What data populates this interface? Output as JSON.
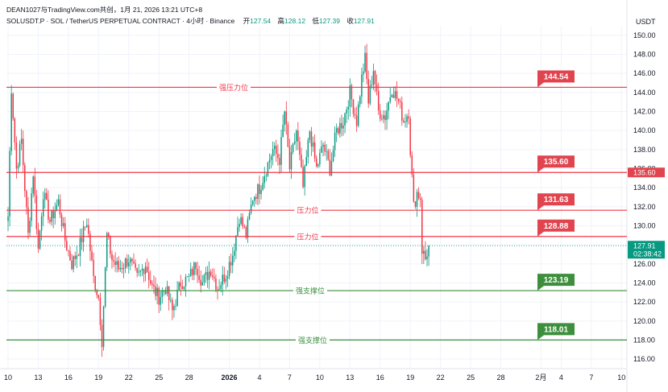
{
  "header": {
    "published": "DEAN1027与TradingView.com共创，1月 21, 2026 13:21 UTC+8",
    "symbol_line": "SOLUSDT.P · SOL / TetherUS PERPETUAL CONTRACT · 4小时 · Binance",
    "ohlc": [
      {
        "label": "开",
        "value": "127.54"
      },
      {
        "label": "高",
        "value": "128.12"
      },
      {
        "label": "低",
        "value": "127.39"
      },
      {
        "label": "收",
        "value": "127.91"
      }
    ],
    "currency": "USDT"
  },
  "colors": {
    "up": "#089981",
    "down": "#f23645",
    "resistance": "#f23645",
    "support": "#388e3c",
    "label_red": "#e0454f",
    "label_green": "#3d8f3d",
    "axis_text": "#131722",
    "grid": "#f0f3fa"
  },
  "chart_data": {
    "type": "candlestick",
    "y_axis": {
      "min": 115,
      "max": 151,
      "ticks": [
        "116.00",
        "118.00",
        "120.00",
        "122.00",
        "124.00",
        "126.00",
        "128.00",
        "130.00",
        "132.00",
        "134.00",
        "136.00",
        "138.00",
        "140.00",
        "142.00",
        "144.00",
        "146.00",
        "148.00",
        "150.00"
      ]
    },
    "x_axis": {
      "ticks": [
        {
          "label": "10",
          "bar": 0
        },
        {
          "label": "13",
          "bar": 18
        },
        {
          "label": "16",
          "bar": 36
        },
        {
          "label": "19",
          "bar": 54
        },
        {
          "label": "22",
          "bar": 72
        },
        {
          "label": "25",
          "bar": 90
        },
        {
          "label": "28",
          "bar": 108
        },
        {
          "label": "2026",
          "bar": 132,
          "bold": true
        },
        {
          "label": "4",
          "bar": 150
        },
        {
          "label": "7",
          "bar": 168
        },
        {
          "label": "10",
          "bar": 186
        },
        {
          "label": "13",
          "bar": 204
        },
        {
          "label": "16",
          "bar": 222
        },
        {
          "label": "19",
          "bar": 240
        },
        {
          "label": "22",
          "bar": 258
        },
        {
          "label": "25",
          "bar": 276
        },
        {
          "label": "28",
          "bar": 294
        },
        {
          "label": "2月",
          "bar": 318
        },
        {
          "label": "4",
          "bar": 330
        },
        {
          "label": "7",
          "bar": 348
        },
        {
          "label": "10",
          "bar": 366
        }
      ]
    },
    "anchors": [
      [
        0,
        131
      ],
      [
        2,
        144.5
      ],
      [
        5,
        136
      ],
      [
        8,
        139
      ],
      [
        12,
        129
      ],
      [
        15,
        135.6
      ],
      [
        18,
        127.5
      ],
      [
        21,
        133.5
      ],
      [
        25,
        130.5
      ],
      [
        30,
        132.5
      ],
      [
        34,
        128.5
      ],
      [
        38,
        126
      ],
      [
        42,
        127.5
      ],
      [
        47,
        130.5
      ],
      [
        51,
        124.5
      ],
      [
        54,
        122.5
      ],
      [
        56,
        118
      ],
      [
        59,
        129
      ],
      [
        62,
        126.5
      ],
      [
        66,
        125.5
      ],
      [
        72,
        126.5
      ],
      [
        77,
        124.5
      ],
      [
        82,
        126
      ],
      [
        86,
        123.5
      ],
      [
        90,
        122.5
      ],
      [
        94,
        123.5
      ],
      [
        98,
        121
      ],
      [
        103,
        124
      ],
      [
        108,
        124.5
      ],
      [
        112,
        126
      ],
      [
        116,
        124
      ],
      [
        121,
        125.5
      ],
      [
        125,
        123.5
      ],
      [
        130,
        125
      ],
      [
        134,
        127
      ],
      [
        138,
        131
      ],
      [
        142,
        129
      ],
      [
        146,
        133
      ],
      [
        150,
        134
      ],
      [
        154,
        136
      ],
      [
        158,
        138
      ],
      [
        162,
        137
      ],
      [
        165,
        142
      ],
      [
        168,
        136
      ],
      [
        172,
        140
      ],
      [
        176,
        134
      ],
      [
        180,
        140
      ],
      [
        184,
        136
      ],
      [
        188,
        138.5
      ],
      [
        192,
        136
      ],
      [
        196,
        140
      ],
      [
        200,
        141
      ],
      [
        204,
        144
      ],
      [
        208,
        141
      ],
      [
        211,
        145.5
      ],
      [
        213,
        147.5
      ],
      [
        215,
        143
      ],
      [
        218,
        146.5
      ],
      [
        221,
        142
      ],
      [
        225,
        141.5
      ],
      [
        229,
        144.5
      ],
      [
        233,
        143
      ],
      [
        236,
        141
      ],
      [
        239,
        142
      ],
      [
        240,
        138
      ],
      [
        242,
        132
      ],
      [
        244,
        133.5
      ],
      [
        246,
        133
      ],
      [
        247,
        127.5
      ],
      [
        249,
        126.5
      ],
      [
        251,
        127.9
      ]
    ],
    "current_price": {
      "value": 127.91,
      "label": "127.91",
      "countdown": "02:38:42"
    },
    "levels": [
      {
        "kind": "resistance",
        "value": 144.54,
        "label": "144.54",
        "name": "强压力位"
      },
      {
        "kind": "resistance",
        "value": 135.6,
        "label": "135.60",
        "name": ""
      },
      {
        "kind": "resistance",
        "value": 131.63,
        "label": "131.63",
        "name": "压力位"
      },
      {
        "kind": "resistance",
        "value": 128.88,
        "label": "128.88",
        "name": "压力位"
      },
      {
        "kind": "support",
        "value": 123.19,
        "label": "123.19",
        "name": "强支撑位"
      },
      {
        "kind": "support",
        "value": 118.01,
        "label": "118.01",
        "name": "强支撑位"
      }
    ],
    "axis_price_badge": {
      "value": 135.6,
      "label": "135.60"
    }
  }
}
